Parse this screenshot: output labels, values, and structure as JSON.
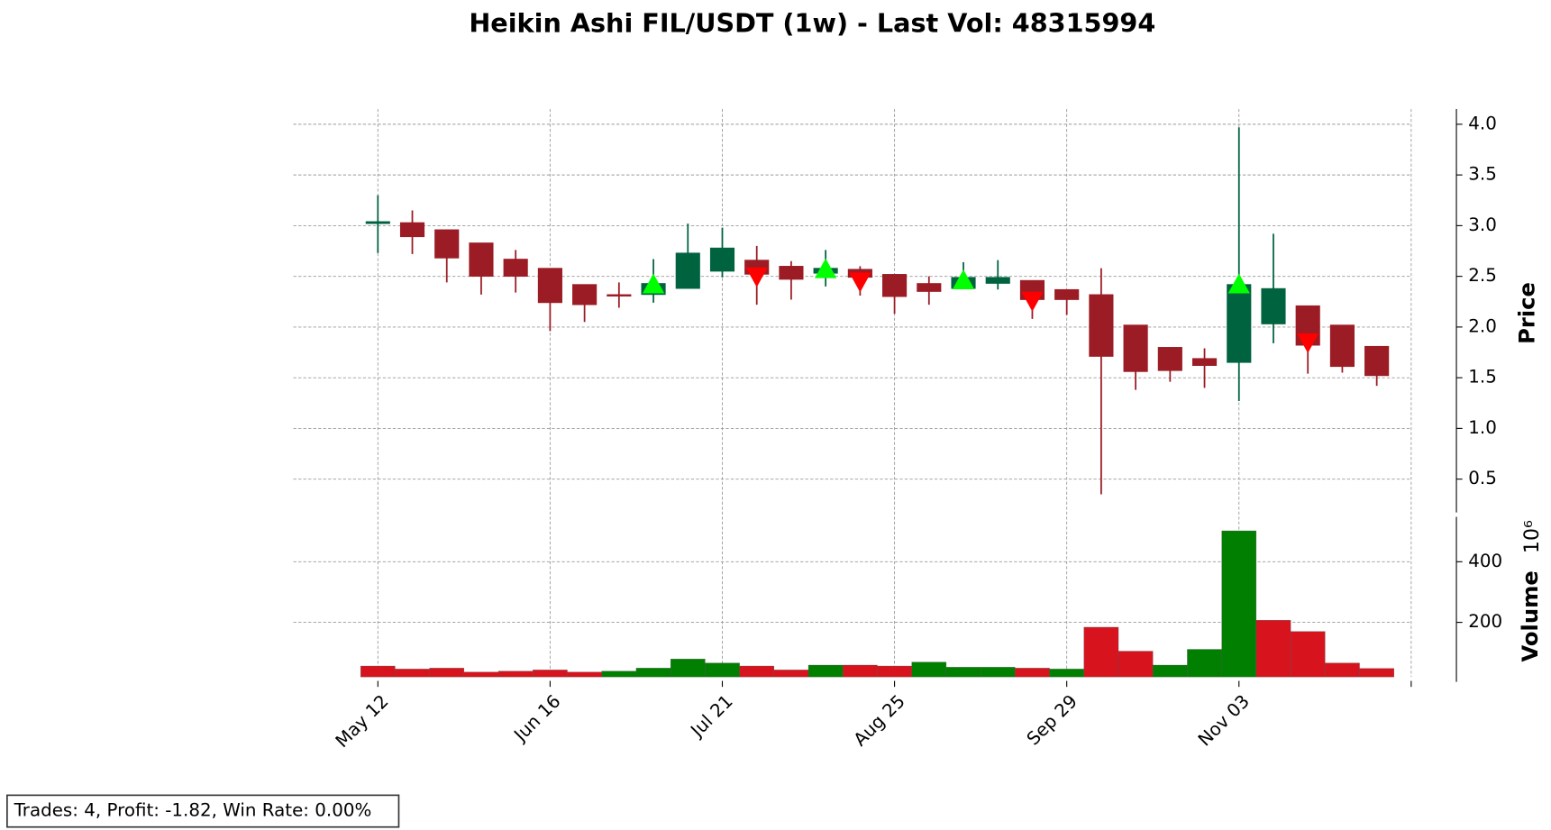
{
  "chart_data": {
    "type": "candlestick",
    "title": "Heikin Ashi FIL/USDT (1w) - Last Vol: 48315994",
    "y_label": "Price",
    "volume_label": "Volume",
    "volume_exponent": "10⁶",
    "annotation": "Trades: 4, Profit: -1.82, Win Rate: 0.00%",
    "categories": [
      "May 12",
      null,
      null,
      null,
      null,
      "Jun 16",
      null,
      null,
      null,
      null,
      "Jul 21",
      null,
      null,
      null,
      null,
      "Aug 25",
      null,
      null,
      null,
      null,
      "Sep 29",
      null,
      null,
      null,
      null,
      "Nov 03",
      null,
      null,
      null,
      null
    ],
    "open": [
      3.02,
      3.03,
      2.96,
      2.83,
      2.67,
      2.58,
      2.42,
      2.32,
      2.32,
      2.38,
      2.55,
      2.66,
      2.6,
      2.53,
      2.57,
      2.52,
      2.43,
      2.38,
      2.43,
      2.46,
      2.37,
      2.32,
      2.02,
      1.8,
      1.69,
      1.65,
      2.03,
      2.21,
      2.02,
      1.81
    ],
    "high": [
      3.3,
      3.15,
      2.96,
      2.83,
      2.76,
      2.58,
      2.42,
      2.44,
      2.67,
      3.02,
      2.98,
      2.8,
      2.65,
      2.76,
      2.6,
      2.52,
      2.5,
      2.64,
      2.66,
      2.46,
      2.37,
      2.58,
      2.02,
      1.8,
      1.79,
      3.97,
      2.92,
      2.21,
      2.02,
      1.81
    ],
    "low": [
      2.73,
      2.72,
      2.44,
      2.32,
      2.34,
      1.96,
      2.05,
      2.19,
      2.24,
      2.38,
      2.49,
      2.22,
      2.27,
      2.4,
      2.31,
      2.13,
      2.22,
      2.38,
      2.37,
      2.08,
      2.12,
      0.35,
      1.38,
      1.46,
      1.4,
      1.27,
      1.84,
      1.54,
      1.55,
      1.42
    ],
    "close": [
      3.04,
      2.89,
      2.68,
      2.5,
      2.5,
      2.24,
      2.22,
      2.32,
      2.43,
      2.73,
      2.78,
      2.52,
      2.47,
      2.58,
      2.49,
      2.3,
      2.35,
      2.49,
      2.49,
      2.27,
      2.27,
      1.71,
      1.56,
      1.57,
      1.62,
      2.42,
      2.38,
      1.82,
      1.61,
      1.52
    ],
    "up_color": "#006340",
    "down_color": "#9b1c24",
    "buy_signal": [
      null,
      null,
      null,
      null,
      null,
      null,
      null,
      null,
      2.42,
      null,
      null,
      null,
      null,
      2.57,
      null,
      null,
      null,
      2.46,
      null,
      null,
      null,
      null,
      null,
      null,
      null,
      2.42,
      null,
      null,
      null,
      null
    ],
    "sell_signal": [
      null,
      null,
      null,
      null,
      null,
      null,
      null,
      null,
      null,
      null,
      null,
      2.5,
      null,
      null,
      2.45,
      null,
      null,
      null,
      null,
      2.26,
      null,
      null,
      null,
      null,
      null,
      null,
      null,
      1.85,
      null,
      null
    ],
    "buy_color": "#00ff00",
    "sell_color": "#ff0000",
    "volume": [
      56,
      46,
      49,
      36,
      39,
      43,
      36,
      39,
      49,
      79,
      66,
      56,
      43,
      59,
      59,
      56,
      69,
      52,
      52,
      49,
      46,
      184,
      105,
      59,
      111,
      502,
      207,
      170,
      66,
      48
    ],
    "volume_colors": [
      "#d7141e",
      "#d7141e",
      "#d7141e",
      "#d7141e",
      "#d7141e",
      "#d7141e",
      "#d7141e",
      "#007f00",
      "#007f00",
      "#007f00",
      "#007f00",
      "#d7141e",
      "#d7141e",
      "#007f00",
      "#d7141e",
      "#d7141e",
      "#007f00",
      "#007f00",
      "#007f00",
      "#d7141e",
      "#007f00",
      "#d7141e",
      "#d7141e",
      "#007f00",
      "#007f00",
      "#007f00",
      "#d7141e",
      "#d7141e",
      "#d7141e",
      "#d7141e"
    ],
    "ylim": [
      0.25,
      4.15
    ],
    "yticks": [
      {
        "value": 0.5,
        "label": "0.5"
      },
      {
        "value": 1,
        "label": "1.0"
      },
      {
        "value": 1.5,
        "label": "1.5"
      },
      {
        "value": 2,
        "label": "2.0"
      },
      {
        "value": 2.5,
        "label": "2.5"
      },
      {
        "value": 3,
        "label": "3.0"
      },
      {
        "value": 3.5,
        "label": "3.5"
      },
      {
        "value": 4,
        "label": "4.0"
      }
    ],
    "volume_ylim": [
      20,
      548
    ],
    "volume_yticks": [
      200,
      400
    ],
    "grid": true
  }
}
